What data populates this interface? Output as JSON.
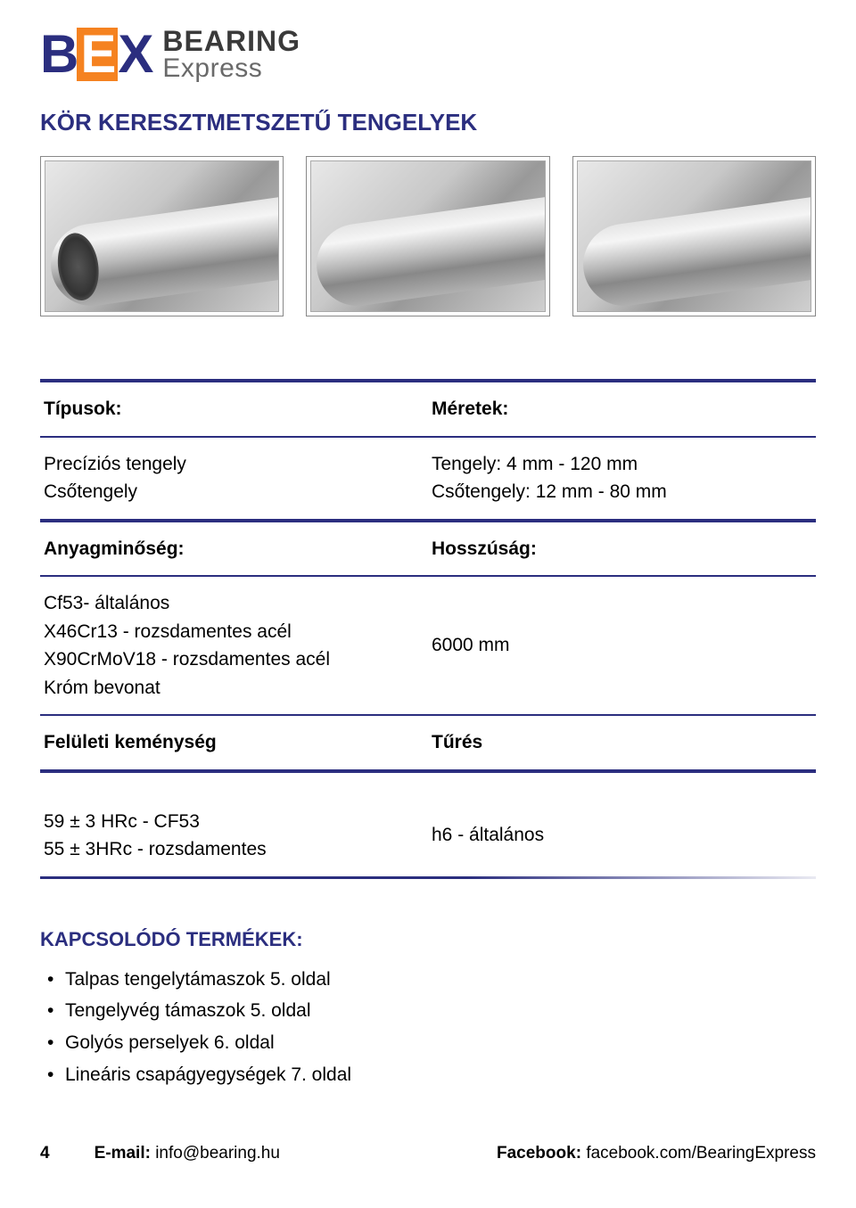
{
  "logo": {
    "mark_b": "B",
    "mark_e": "E",
    "mark_x": "X",
    "text_top": "BEARING",
    "text_bottom": "Express",
    "brand_navy": "#2b2e7f",
    "brand_orange": "#f58220"
  },
  "page_title": "KÖR KERESZTMETSZETŰ TENGELYEK",
  "specs": {
    "types_label": "Típusok:",
    "types_body": "Precíziós tengely\nCsőtengely",
    "sizes_label": "Méretek:",
    "sizes_body": "Tengely: 4 mm - 120 mm\nCsőtengely: 12 mm - 80 mm",
    "material_label": "Anyagminőség:",
    "material_body": "Cf53- általános\nX46Cr13 - rozsdamentes acél\nX90CrMoV18 - rozsdamentes acél\nKróm bevonat",
    "length_label": "Hosszúság:",
    "length_body": " 6000 mm",
    "hardness_label": "Felületi keménység",
    "tolerance_label": "Tűrés",
    "hardness_body": "59 ± 3 HRc - CF53\n55 ± 3HRc - rozsdamentes",
    "tolerance_body": "h6 - általános"
  },
  "related": {
    "title": "KAPCSOLÓDÓ TERMÉKEK:",
    "items": [
      "Talpas tengelytámaszok 5. oldal",
      "Tengelyvég támaszok 5. oldal",
      "Golyós perselyek 6. oldal",
      "Lineáris csapágyegységek 7. oldal"
    ]
  },
  "footer": {
    "page_number": "4",
    "email_label": "E-mail: ",
    "email_value": "info@bearing.hu",
    "fb_label": "Facebook: ",
    "fb_value": "facebook.com/BearingExpress"
  },
  "style": {
    "divider_color": "#2b2e7f",
    "body_font_size": 21,
    "title_font_size": 26
  }
}
